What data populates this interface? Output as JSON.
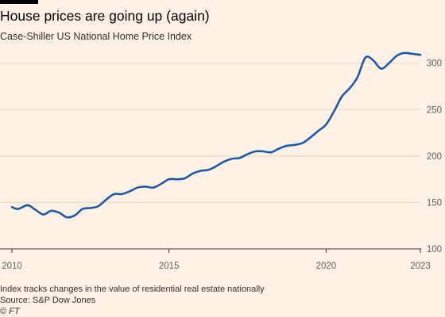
{
  "header": {
    "title": "House prices are going up (again)",
    "subtitle": "Case-Shiller US National Home Price Index"
  },
  "footer": {
    "note": "Index tracks changes in the value of residential real estate nationally",
    "source": "Source: S&P Dow Jones",
    "credit": "© FT"
  },
  "colors": {
    "background": "#fff1e5",
    "line": "#1f5aa6",
    "grid": "#e6d9ce",
    "axis": "#33302e",
    "accent_bar": "#000000"
  },
  "chart_data": {
    "type": "line",
    "title": "House prices are going up (again)",
    "subtitle": "Case-Shiller US National Home Price Index",
    "xlabel": "",
    "ylabel": "",
    "xlim": [
      2010,
      2023
    ],
    "ylim": [
      100,
      310
    ],
    "x_ticks": [
      "2010",
      "2015",
      "2020",
      "2023"
    ],
    "y_ticks": [
      "100",
      "150",
      "200",
      "250",
      "300"
    ],
    "grid": true,
    "y_axis_side": "right",
    "series": [
      {
        "x": [
          2010.0,
          2010.2,
          2010.5,
          2010.75,
          2011.0,
          2011.25,
          2011.5,
          2011.75,
          2012.0,
          2012.25,
          2012.5,
          2012.75,
          2013.0,
          2013.25,
          2013.5,
          2013.75,
          2014.0,
          2014.25,
          2014.5,
          2014.75,
          2015.0,
          2015.25,
          2015.5,
          2015.75,
          2016.0,
          2016.25,
          2016.5,
          2016.75,
          2017.0,
          2017.25,
          2017.5,
          2017.75,
          2018.0,
          2018.25,
          2018.5,
          2018.75,
          2019.0,
          2019.25,
          2019.5,
          2019.75,
          2020.0,
          2020.25,
          2020.5,
          2020.75,
          2021.0,
          2021.25,
          2021.5,
          2021.75,
          2022.0,
          2022.25,
          2022.5,
          2022.75,
          2023.0
        ],
        "values": [
          145,
          143,
          147,
          142,
          137,
          141,
          139,
          134,
          136,
          143,
          144,
          146,
          153,
          159,
          159,
          162,
          166,
          167,
          166,
          170,
          175,
          175,
          176,
          181,
          184,
          185,
          189,
          194,
          197,
          198,
          202,
          205,
          205,
          204,
          208,
          211,
          212,
          214,
          220,
          227,
          234,
          248,
          264,
          273,
          285,
          306,
          303,
          294,
          300,
          308,
          311,
          310,
          309
        ]
      }
    ]
  }
}
